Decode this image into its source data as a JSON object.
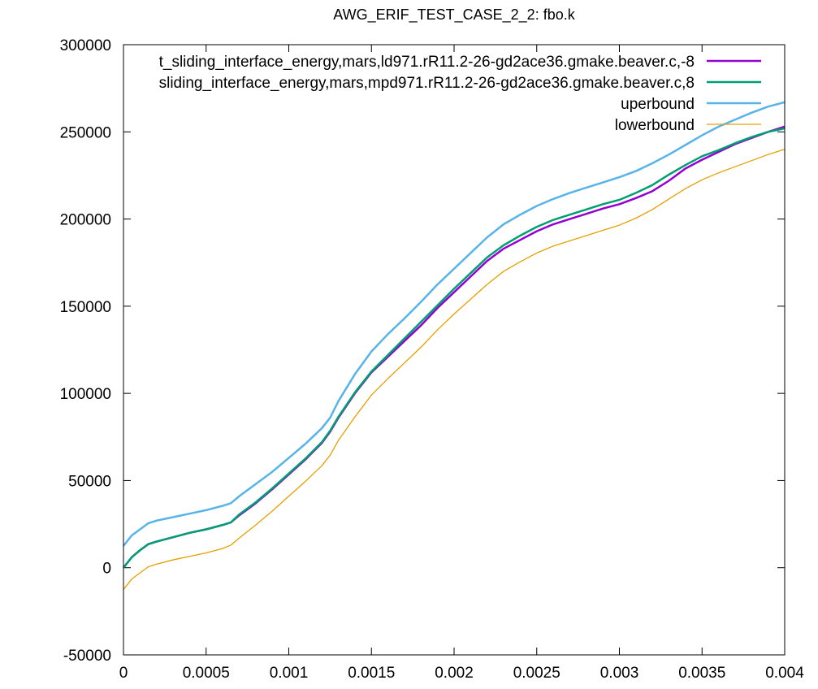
{
  "chart_data": {
    "type": "line",
    "title": "AWG_ERIF_TEST_CASE_2_2: fbo.k",
    "xlabel": "",
    "ylabel": "",
    "xlim": [
      0,
      0.004
    ],
    "ylim": [
      -50000,
      300000
    ],
    "grid": false,
    "legend_position": "top-right",
    "x_ticks": [
      0,
      0.0005,
      0.001,
      0.0015,
      0.002,
      0.0025,
      0.003,
      0.0035,
      0.004
    ],
    "x_tick_labels": [
      "0",
      "0.0005",
      "0.001",
      "0.0015",
      "0.002",
      "0.0025",
      "0.003",
      "0.0035",
      "0.004"
    ],
    "y_ticks": [
      -50000,
      0,
      50000,
      100000,
      150000,
      200000,
      250000,
      300000
    ],
    "y_tick_labels": [
      "-50000",
      "0",
      "50000",
      "100000",
      "150000",
      "200000",
      "250000",
      "300000"
    ],
    "series": [
      {
        "name": "t_sliding_interface_energy,mars,ld971.rR11.2-26-gd2ace36.gmake.beaver.c,-8",
        "color": "#9400d3",
        "width": 2.5,
        "x": [
          0,
          5e-05,
          0.0001,
          0.00015,
          0.0002,
          0.0003,
          0.0004,
          0.0005,
          0.0006,
          0.00065,
          0.0007,
          0.0008,
          0.0009,
          0.001,
          0.0011,
          0.0012,
          0.00125,
          0.0013,
          0.0014,
          0.0015,
          0.0016,
          0.0017,
          0.0018,
          0.0019,
          0.002,
          0.0021,
          0.0022,
          0.0023,
          0.0024,
          0.0025,
          0.0026,
          0.0027,
          0.0028,
          0.0029,
          0.003,
          0.0031,
          0.0032,
          0.0033,
          0.0034,
          0.0035,
          0.0036,
          0.0037,
          0.0038,
          0.0039,
          0.004
        ],
        "y": [
          0,
          6000,
          10000,
          13500,
          15000,
          17500,
          20000,
          22000,
          24500,
          26000,
          30000,
          37000,
          45000,
          53500,
          62000,
          71500,
          78000,
          86000,
          100000,
          112000,
          121000,
          130000,
          139000,
          149000,
          158000,
          167000,
          176000,
          183000,
          188000,
          193000,
          197000,
          200000,
          203000,
          206000,
          208500,
          212000,
          216000,
          222000,
          229000,
          234000,
          238500,
          243000,
          246500,
          250000,
          253000
        ]
      },
      {
        "name": "sliding_interface_energy,mars,mpd971.rR11.2-26-gd2ace36.gmake.beaver.c,8",
        "color": "#009e73",
        "width": 2.5,
        "x": [
          0,
          5e-05,
          0.0001,
          0.00015,
          0.0002,
          0.0003,
          0.0004,
          0.0005,
          0.0006,
          0.00065,
          0.0007,
          0.0008,
          0.0009,
          0.001,
          0.0011,
          0.0012,
          0.00125,
          0.0013,
          0.0014,
          0.0015,
          0.0016,
          0.0017,
          0.0018,
          0.0019,
          0.002,
          0.0021,
          0.0022,
          0.0023,
          0.0024,
          0.0025,
          0.0026,
          0.0027,
          0.0028,
          0.0029,
          0.003,
          0.0031,
          0.0032,
          0.0033,
          0.0034,
          0.0035,
          0.0036,
          0.0037,
          0.0038,
          0.0039,
          0.004
        ],
        "y": [
          0,
          6000,
          10000,
          13500,
          15000,
          17500,
          20000,
          22000,
          24500,
          26000,
          30500,
          37500,
          45500,
          54000,
          62500,
          72000,
          78500,
          86500,
          100500,
          112500,
          122000,
          131500,
          141000,
          150500,
          160000,
          169000,
          178000,
          185000,
          190500,
          195500,
          199500,
          202500,
          205500,
          208500,
          211000,
          215000,
          219500,
          225500,
          231000,
          236000,
          239500,
          243500,
          247000,
          250000,
          252000
        ]
      },
      {
        "name": "uperbound",
        "color": "#56b4e9",
        "width": 2.5,
        "x": [
          0,
          5e-05,
          0.0001,
          0.00015,
          0.0002,
          0.0003,
          0.0004,
          0.0005,
          0.0006,
          0.00065,
          0.0007,
          0.0008,
          0.0009,
          0.001,
          0.0011,
          0.0012,
          0.00125,
          0.0013,
          0.0014,
          0.0015,
          0.0016,
          0.0017,
          0.0018,
          0.0019,
          0.002,
          0.0021,
          0.0022,
          0.0023,
          0.0024,
          0.0025,
          0.0026,
          0.0027,
          0.0028,
          0.0029,
          0.003,
          0.0031,
          0.0032,
          0.0033,
          0.0034,
          0.0035,
          0.0036,
          0.0037,
          0.0038,
          0.0039,
          0.004
        ],
        "y": [
          12500,
          18500,
          22000,
          25500,
          27000,
          29000,
          31000,
          33000,
          35500,
          37000,
          41000,
          48000,
          55000,
          63000,
          71000,
          80000,
          86000,
          95500,
          111000,
          124000,
          134000,
          143000,
          152500,
          162500,
          171500,
          180500,
          189500,
          197000,
          202500,
          207500,
          211500,
          215000,
          218000,
          221000,
          224000,
          227500,
          232000,
          237000,
          242500,
          248000,
          253000,
          257000,
          261000,
          264500,
          267000
        ]
      },
      {
        "name": "lowerbound",
        "color": "#e69f00",
        "width": 1.3,
        "x": [
          0,
          5e-05,
          0.0001,
          0.00015,
          0.0002,
          0.0003,
          0.0004,
          0.0005,
          0.0006,
          0.00065,
          0.0007,
          0.0008,
          0.0009,
          0.001,
          0.0011,
          0.0012,
          0.00125,
          0.0013,
          0.0014,
          0.0015,
          0.0016,
          0.0017,
          0.0018,
          0.0019,
          0.002,
          0.0021,
          0.0022,
          0.0023,
          0.0024,
          0.0025,
          0.0026,
          0.0027,
          0.0028,
          0.0029,
          0.003,
          0.0031,
          0.0032,
          0.0033,
          0.0034,
          0.0035,
          0.0036,
          0.0037,
          0.0038,
          0.0039,
          0.004
        ],
        "y": [
          -12500,
          -6500,
          -3000,
          500,
          2000,
          4500,
          6500,
          8500,
          11000,
          13000,
          17000,
          24500,
          32500,
          41000,
          49500,
          58500,
          64500,
          73000,
          86500,
          99000,
          108500,
          117500,
          126500,
          136500,
          145500,
          154000,
          162500,
          170000,
          175500,
          180500,
          184500,
          187500,
          190500,
          193500,
          196500,
          200500,
          205500,
          211500,
          217500,
          222500,
          226500,
          230000,
          233500,
          237000,
          240000
        ]
      }
    ]
  }
}
